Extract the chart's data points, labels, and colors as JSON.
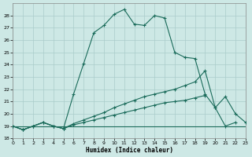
{
  "xlabel": "Humidex (Indice chaleur)",
  "background_color": "#cde8e5",
  "grid_color": "#aaccca",
  "line_color": "#1a6b5a",
  "xlim": [
    0,
    23
  ],
  "ylim": [
    18,
    29
  ],
  "xticks": [
    0,
    1,
    2,
    3,
    4,
    5,
    6,
    7,
    8,
    9,
    10,
    11,
    12,
    13,
    14,
    15,
    16,
    17,
    18,
    19,
    20,
    21,
    22,
    23
  ],
  "yticks": [
    18,
    19,
    20,
    21,
    22,
    23,
    24,
    25,
    26,
    27,
    28
  ],
  "line1_x": [
    0,
    1,
    2,
    3,
    4,
    5,
    6,
    7,
    8,
    9,
    10,
    11,
    12,
    13,
    14,
    15,
    16,
    17,
    18,
    19,
    20,
    21,
    22
  ],
  "line1_y": [
    19.0,
    18.7,
    19.0,
    19.3,
    19.0,
    18.8,
    21.6,
    24.1,
    26.6,
    27.2,
    28.1,
    28.5,
    27.3,
    27.2,
    28.0,
    27.8,
    25.0,
    24.6,
    24.5,
    21.6,
    20.5,
    19.0,
    19.3
  ],
  "line2_x": [
    0,
    1,
    2,
    3,
    4,
    5,
    6,
    7,
    8,
    9,
    10,
    11,
    12,
    13,
    14,
    15,
    16,
    17,
    18,
    19,
    20,
    21,
    22,
    23
  ],
  "line2_y": [
    19.0,
    18.7,
    19.0,
    19.3,
    19.0,
    18.8,
    19.2,
    19.5,
    19.8,
    20.1,
    20.5,
    20.8,
    21.1,
    21.4,
    21.6,
    21.8,
    22.0,
    22.3,
    22.6,
    23.5,
    20.5,
    21.4,
    20.0,
    19.3
  ],
  "line3_x": [
    0,
    1,
    2,
    3,
    4,
    5,
    6,
    7,
    8,
    9,
    10,
    11,
    12,
    13,
    14,
    15,
    16,
    17,
    18,
    19
  ],
  "line3_y": [
    19.0,
    18.7,
    19.0,
    19.3,
    19.0,
    18.8,
    19.1,
    19.3,
    19.5,
    19.7,
    19.9,
    20.1,
    20.3,
    20.5,
    20.7,
    20.9,
    21.0,
    21.1,
    21.3,
    21.5
  ],
  "line4_x": [
    0,
    23
  ],
  "line4_y": [
    19.0,
    19.0
  ]
}
